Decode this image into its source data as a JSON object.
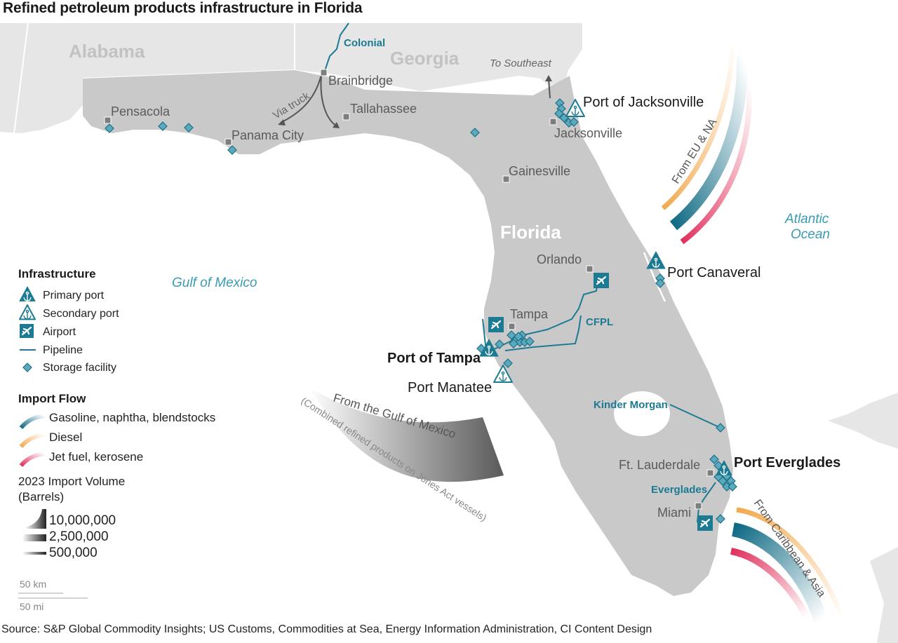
{
  "title": "Refined petroleum products infrastructure in Florida",
  "source": "Source: S&P Global Commodity Insights; US Customs, Commodities at Sea, Energy Information Administration, CI Content Design",
  "colors": {
    "land": "#c9c9c9",
    "other_land": "#e6e6e6",
    "teal": "#1c7a93",
    "storage": "#5aa9bd",
    "gasoline": "#1a6f88",
    "diesel": "#f2b56b",
    "jet": "#e0456a",
    "water_label": "#3a9ab4"
  },
  "regions": {
    "alabama": "Alabama",
    "georgia": "Georgia",
    "florida": "Florida"
  },
  "water": {
    "gulf": "Gulf of Mexico",
    "atlantic_1": "Atlantic",
    "atlantic_2": "Ocean"
  },
  "cities": {
    "brainbridge": "Brainbridge",
    "tallahassee": "Tallahassee",
    "pensacola": "Pensacola",
    "panama_city": "Panama City",
    "jacksonville": "Jacksonville",
    "gainesville": "Gainesville",
    "orlando": "Orlando",
    "tampa": "Tampa",
    "ft_lauderdale": "Ft. Lauderdale",
    "miami": "Miami"
  },
  "ports": {
    "jacksonville": "Port of Jacksonville",
    "canaveral": "Port Canaveral",
    "tampa": "Port of Tampa",
    "manatee": "Port Manatee",
    "everglades": "Port Everglades"
  },
  "pipelines": {
    "colonial": "Colonial",
    "cfpl": "CFPL",
    "kinder_morgan": "Kinder Morgan",
    "everglades": "Everglades"
  },
  "annotations": {
    "via_truck": "Via truck",
    "to_southeast": "To Southeast",
    "from_eu_na": "From EU & NA",
    "from_gulf": "From the Gulf of Mexico",
    "combined": "(Combined refined products on Jones Act vessels)",
    "from_caribbean": "From Caribbean & Asia"
  },
  "legend": {
    "infrastructure_title": "Infrastructure",
    "primary_port": "Primary port",
    "secondary_port": "Secondary port",
    "airport": "Airport",
    "pipeline": "Pipeline",
    "storage": "Storage facility",
    "import_flow_title": "Import Flow",
    "gasoline": "Gasoline, naphtha, blendstocks",
    "diesel": "Diesel",
    "jet": "Jet fuel, kerosene",
    "volume_title": "2023 Import Volume",
    "volume_unit": "(Barrels)",
    "volume_high": "10,000,000",
    "volume_mid": "2,500,000",
    "volume_low": "500,000",
    "scale_km": "50 km",
    "scale_mi": "50 mi"
  }
}
